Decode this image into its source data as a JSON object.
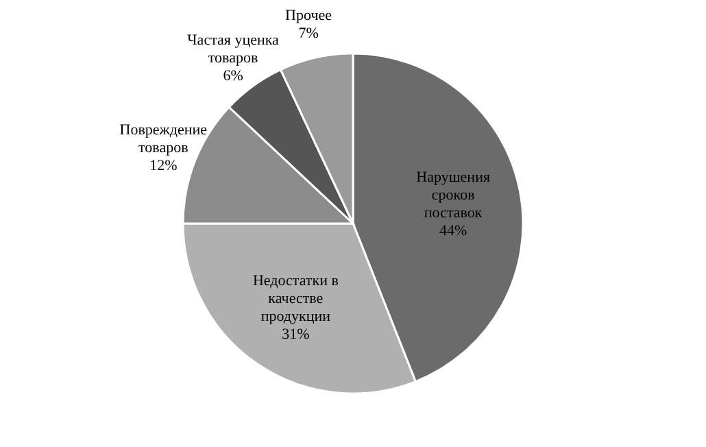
{
  "chart_data": {
    "type": "pie",
    "categories": [
      "Нарушения сроков поставок",
      "Недостатки в качестве продукции",
      "Повреждение товаров",
      "Частая уценка товаров",
      "Прочее"
    ],
    "values": [
      44,
      31,
      12,
      6,
      7
    ],
    "value_labels": [
      "44%",
      "31%",
      "12%",
      "6%",
      "7%"
    ],
    "colors": [
      "#6b6b6b",
      "#b0b0b0",
      "#8c8c8c",
      "#555555",
      "#9a9a9a"
    ]
  }
}
